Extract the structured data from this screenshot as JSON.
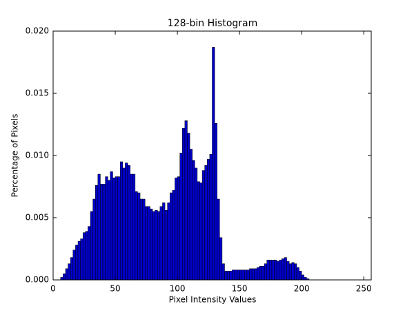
{
  "chart_data": {
    "type": "histogram",
    "title": "128-bin Histogram",
    "x_label": "Pixel Intensity Values",
    "y_label": "Percentage of Pixels",
    "color": "#0000c8",
    "edge_color": "#000000",
    "bins": [
      0,
      2,
      4,
      6,
      8,
      10,
      12,
      14,
      16,
      18,
      20,
      22,
      24,
      26,
      28,
      30,
      32,
      34,
      36,
      38,
      40,
      42,
      44,
      46,
      48,
      50,
      52,
      54,
      56,
      58,
      60,
      62,
      64,
      66,
      68,
      70,
      72,
      74,
      76,
      78,
      80,
      82,
      84,
      86,
      88,
      90,
      92,
      94,
      96,
      98,
      100,
      102,
      104,
      106,
      108,
      110,
      112,
      114,
      116,
      118,
      120,
      122,
      124,
      126,
      128,
      130,
      132,
      134,
      136,
      138,
      140,
      142,
      144,
      146,
      148,
      150,
      152,
      154,
      156,
      158,
      160,
      162,
      164,
      166,
      168,
      170,
      172,
      174,
      176,
      178,
      180,
      182,
      184,
      186,
      188,
      190,
      192,
      194,
      196,
      198,
      200,
      202,
      204,
      206,
      208,
      210,
      212,
      214,
      216,
      218,
      220,
      222,
      224,
      226,
      228,
      230,
      232,
      234,
      236,
      238,
      240,
      242,
      244,
      246,
      248,
      250,
      252,
      254,
      256
    ],
    "values": [
      0,
      0,
      0,
      0.0002,
      0.0005,
      0.0009,
      0.0013,
      0.0018,
      0.0024,
      0.0028,
      0.0031,
      0.0033,
      0.0038,
      0.0039,
      0.0043,
      0.0055,
      0.0065,
      0.0076,
      0.0085,
      0.0077,
      0.0077,
      0.0083,
      0.008,
      0.0087,
      0.0082,
      0.0083,
      0.0083,
      0.0095,
      0.009,
      0.0094,
      0.0092,
      0.0085,
      0.0085,
      0.0071,
      0.007,
      0.0065,
      0.0065,
      0.0059,
      0.0059,
      0.0057,
      0.0055,
      0.0056,
      0.0055,
      0.0059,
      0.0062,
      0.0056,
      0.0062,
      0.007,
      0.0072,
      0.0082,
      0.0083,
      0.0102,
      0.0122,
      0.0128,
      0.0118,
      0.0105,
      0.0096,
      0.009,
      0.0079,
      0.0078,
      0.0088,
      0.0092,
      0.0097,
      0.0101,
      0.0187,
      0.0126,
      0.0065,
      0.0034,
      0.0013,
      0.0007,
      0.0007,
      0.0007,
      0.0008,
      0.0008,
      0.0008,
      0.0008,
      0.0008,
      0.0008,
      0.0008,
      0.0009,
      0.0009,
      0.0009,
      0.001,
      0.0011,
      0.0011,
      0.0013,
      0.0016,
      0.0016,
      0.0016,
      0.0016,
      0.0015,
      0.0016,
      0.0017,
      0.0018,
      0.0015,
      0.0013,
      0.0014,
      0.0013,
      0.001,
      0.0007,
      0.0004,
      0.0002,
      0.0001,
      0,
      0,
      0,
      0,
      0,
      0,
      0,
      0,
      0,
      0,
      0,
      0,
      0,
      0,
      0,
      0,
      0,
      0,
      0,
      0,
      0,
      0,
      0,
      0,
      0
    ],
    "xlim": [
      0,
      256
    ],
    "xticks": [
      0,
      50,
      100,
      150,
      200,
      250
    ],
    "ylim": [
      0,
      0.02
    ],
    "yticks": [
      {
        "value": 0,
        "label": "0.000"
      },
      {
        "value": 0.005,
        "label": "0.005"
      },
      {
        "value": 0.01,
        "label": "0.010"
      },
      {
        "value": 0.015,
        "label": "0.015"
      },
      {
        "value": 0.02,
        "label": "0.020"
      }
    ],
    "grid": false
  }
}
